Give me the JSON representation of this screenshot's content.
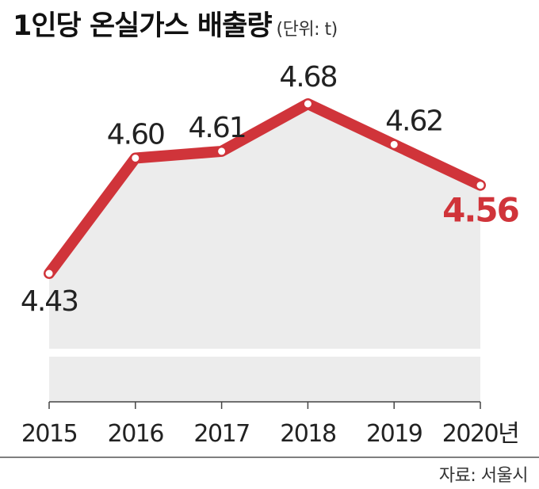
{
  "title": {
    "main": "1인당 온실가스 배출량",
    "unit": "(단위: t)"
  },
  "source": "자료: 서울시",
  "colors": {
    "line": "#d0343a",
    "area": "#ececec",
    "highlight_label": "#d0343a",
    "label": "#222222"
  },
  "chart_data": {
    "type": "area",
    "title": "1인당 온실가스 배출량",
    "unit": "t",
    "categories": [
      "2015",
      "2016",
      "2017",
      "2018",
      "2019",
      "2020년"
    ],
    "series": [
      {
        "values": [
          4.43,
          4.6,
          4.61,
          4.68,
          4.62,
          4.56
        ]
      }
    ],
    "data_labels": [
      "4.43",
      "4.60",
      "4.61",
      "4.68",
      "4.62",
      "4.56"
    ],
    "highlight_index": 5,
    "axis_break": true,
    "grid": false,
    "legend": "none"
  }
}
